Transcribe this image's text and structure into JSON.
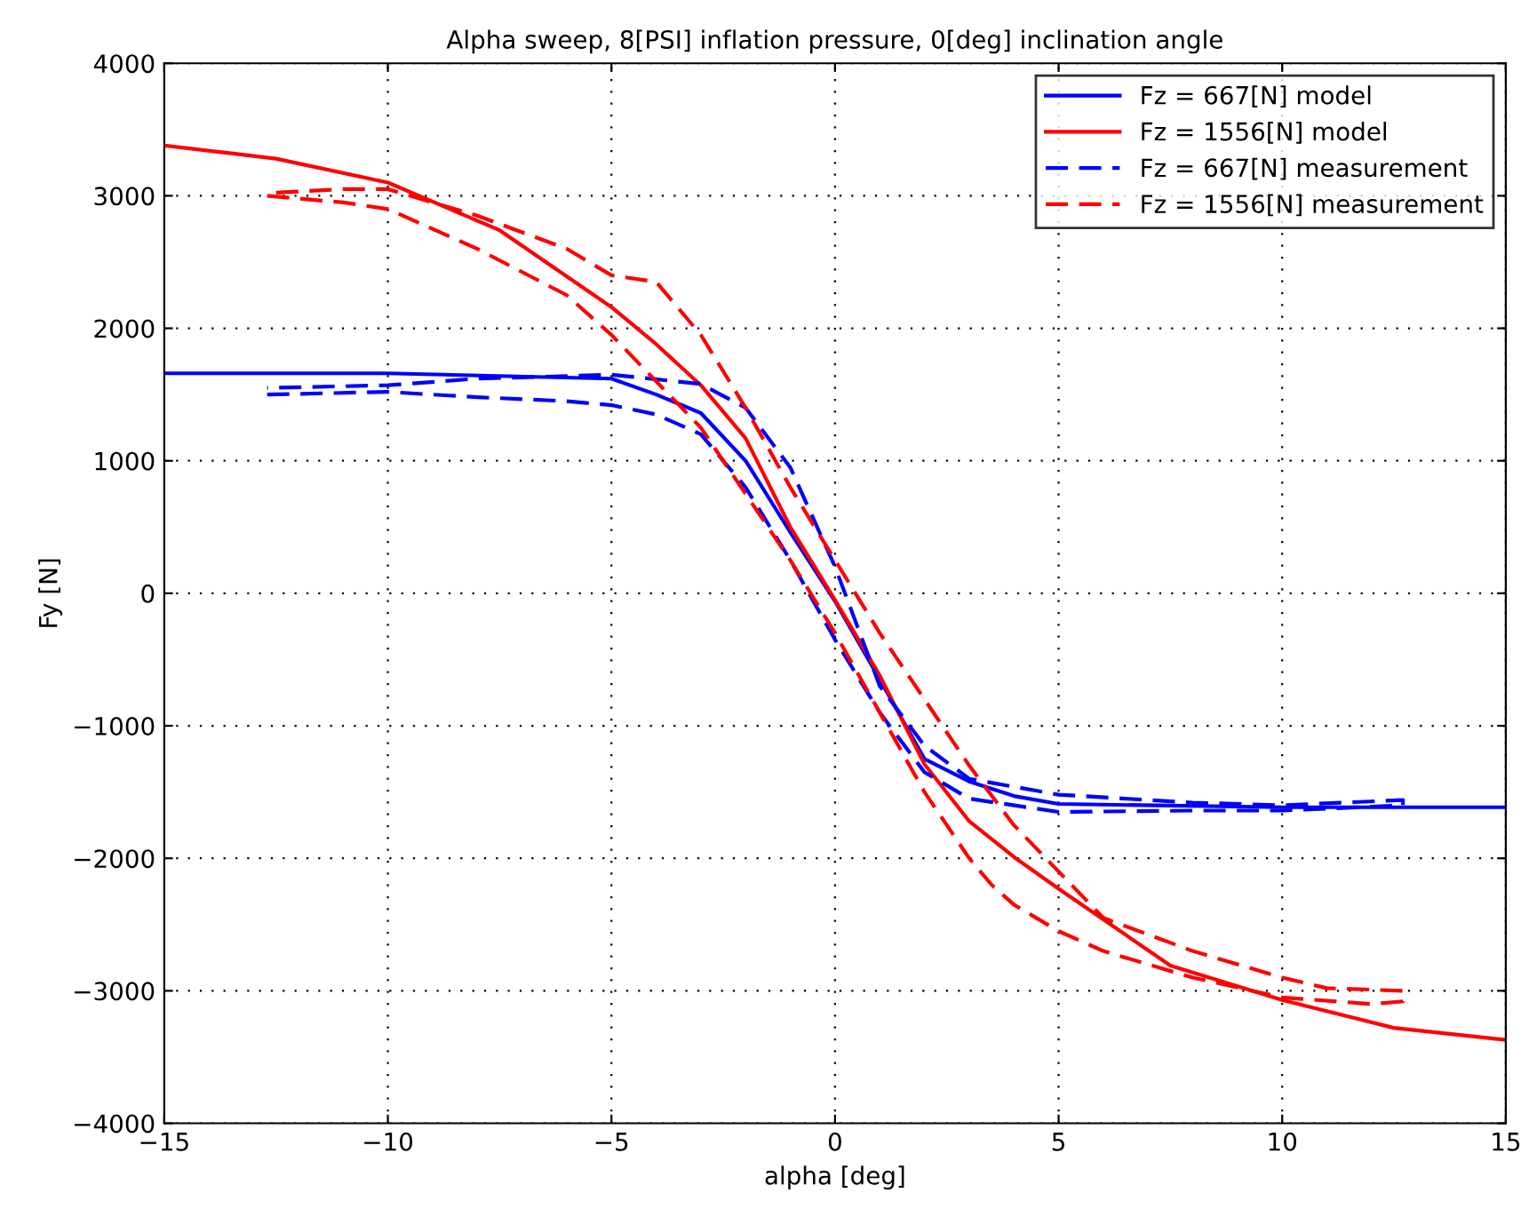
{
  "chart_data": {
    "type": "line",
    "title": "Alpha sweep, 8[PSI] inflation pressure, 0[deg] inclination angle",
    "xlabel": "alpha [deg]",
    "ylabel": "Fy [N]",
    "xlim": [
      -15,
      15
    ],
    "xticks": [
      {
        "value": -15,
        "label": "−15"
      },
      {
        "value": -10,
        "label": "−10"
      },
      {
        "value": -5,
        "label": "−5"
      },
      0,
      5,
      10,
      15
    ],
    "ylim": [
      -4000,
      4000
    ],
    "yticks": [
      {
        "value": -4000,
        "label": "−4000"
      },
      {
        "value": -3000,
        "label": "−3000"
      },
      {
        "value": -2000,
        "label": "−2000"
      },
      {
        "value": -1000,
        "label": "−1000"
      },
      0,
      1000,
      2000,
      3000,
      4000
    ],
    "grid": true,
    "legend": "top right",
    "series": [
      {
        "name": "Fz = 667[N] model",
        "color": "#0000ff",
        "line_style": "solid",
        "x": [
          -15,
          -10,
          -5,
          -4,
          -3,
          -2,
          -1,
          0,
          1,
          2,
          3,
          4,
          5,
          10,
          15
        ],
        "values": [
          1660,
          1660,
          1620,
          1500,
          1360,
          1000,
          460,
          -60,
          -650,
          -1250,
          -1420,
          -1530,
          -1590,
          -1615,
          -1615
        ]
      },
      {
        "name": "Fz = 1556[N] model",
        "color": "#ff0000",
        "line_style": "solid",
        "x": [
          -15,
          -12.5,
          -10,
          -7.5,
          -5,
          -4,
          -3,
          -2,
          -1,
          0,
          1,
          2,
          3,
          4,
          5,
          7.5,
          10,
          12.5,
          15
        ],
        "values": [
          3380,
          3280,
          3100,
          2740,
          2160,
          1880,
          1570,
          1170,
          500,
          -50,
          -620,
          -1290,
          -1720,
          -1990,
          -2230,
          -2810,
          -3070,
          -3280,
          -3370
        ]
      },
      {
        "name": "Fz = 667[N] measurement",
        "color": "#0000ff",
        "line_style": "dashed",
        "x": [
          -12.7,
          -10,
          -8,
          -6,
          -5,
          -4,
          -3,
          -2,
          -1,
          0,
          1,
          2,
          3,
          5,
          8,
          10,
          12.7,
          12.7,
          10,
          8,
          5,
          3,
          2,
          1,
          0,
          -1,
          -2,
          -3,
          -5,
          -8,
          -10,
          -12.7
        ],
        "values": [
          1500,
          1520,
          1480,
          1450,
          1420,
          1350,
          1200,
          800,
          250,
          -350,
          -900,
          -1350,
          -1550,
          -1650,
          -1640,
          -1640,
          -1600,
          -1560,
          -1600,
          -1580,
          -1520,
          -1400,
          -1150,
          -700,
          200,
          950,
          1400,
          1580,
          1650,
          1620,
          1570,
          1550
        ]
      },
      {
        "name": "Fz = 1556[N] measurement",
        "color": "#ff0000",
        "line_style": "dashed",
        "x": [
          -12.7,
          -11,
          -10,
          -8,
          -6,
          -5,
          -4,
          -3,
          -2,
          -1,
          0,
          1,
          2,
          3,
          3.5,
          4,
          5,
          6,
          8,
          10,
          12,
          12.7,
          12.7,
          11,
          10,
          8,
          6,
          5,
          4,
          3,
          2,
          1,
          0,
          -1,
          -2,
          -3,
          -4,
          -5,
          -6,
          -8,
          -10,
          -11,
          -12.7
        ],
        "values": [
          3000,
          2950,
          2900,
          2600,
          2250,
          1950,
          1600,
          1250,
          750,
          250,
          -300,
          -900,
          -1500,
          -2000,
          -2200,
          -2350,
          -2550,
          -2700,
          -2900,
          -3050,
          -3100,
          -3080,
          -3000,
          -2980,
          -2900,
          -2700,
          -2450,
          -2100,
          -1750,
          -1300,
          -800,
          -300,
          250,
          800,
          1400,
          1950,
          2350,
          2400,
          2600,
          2850,
          3050,
          3050,
          3020
        ]
      }
    ]
  }
}
